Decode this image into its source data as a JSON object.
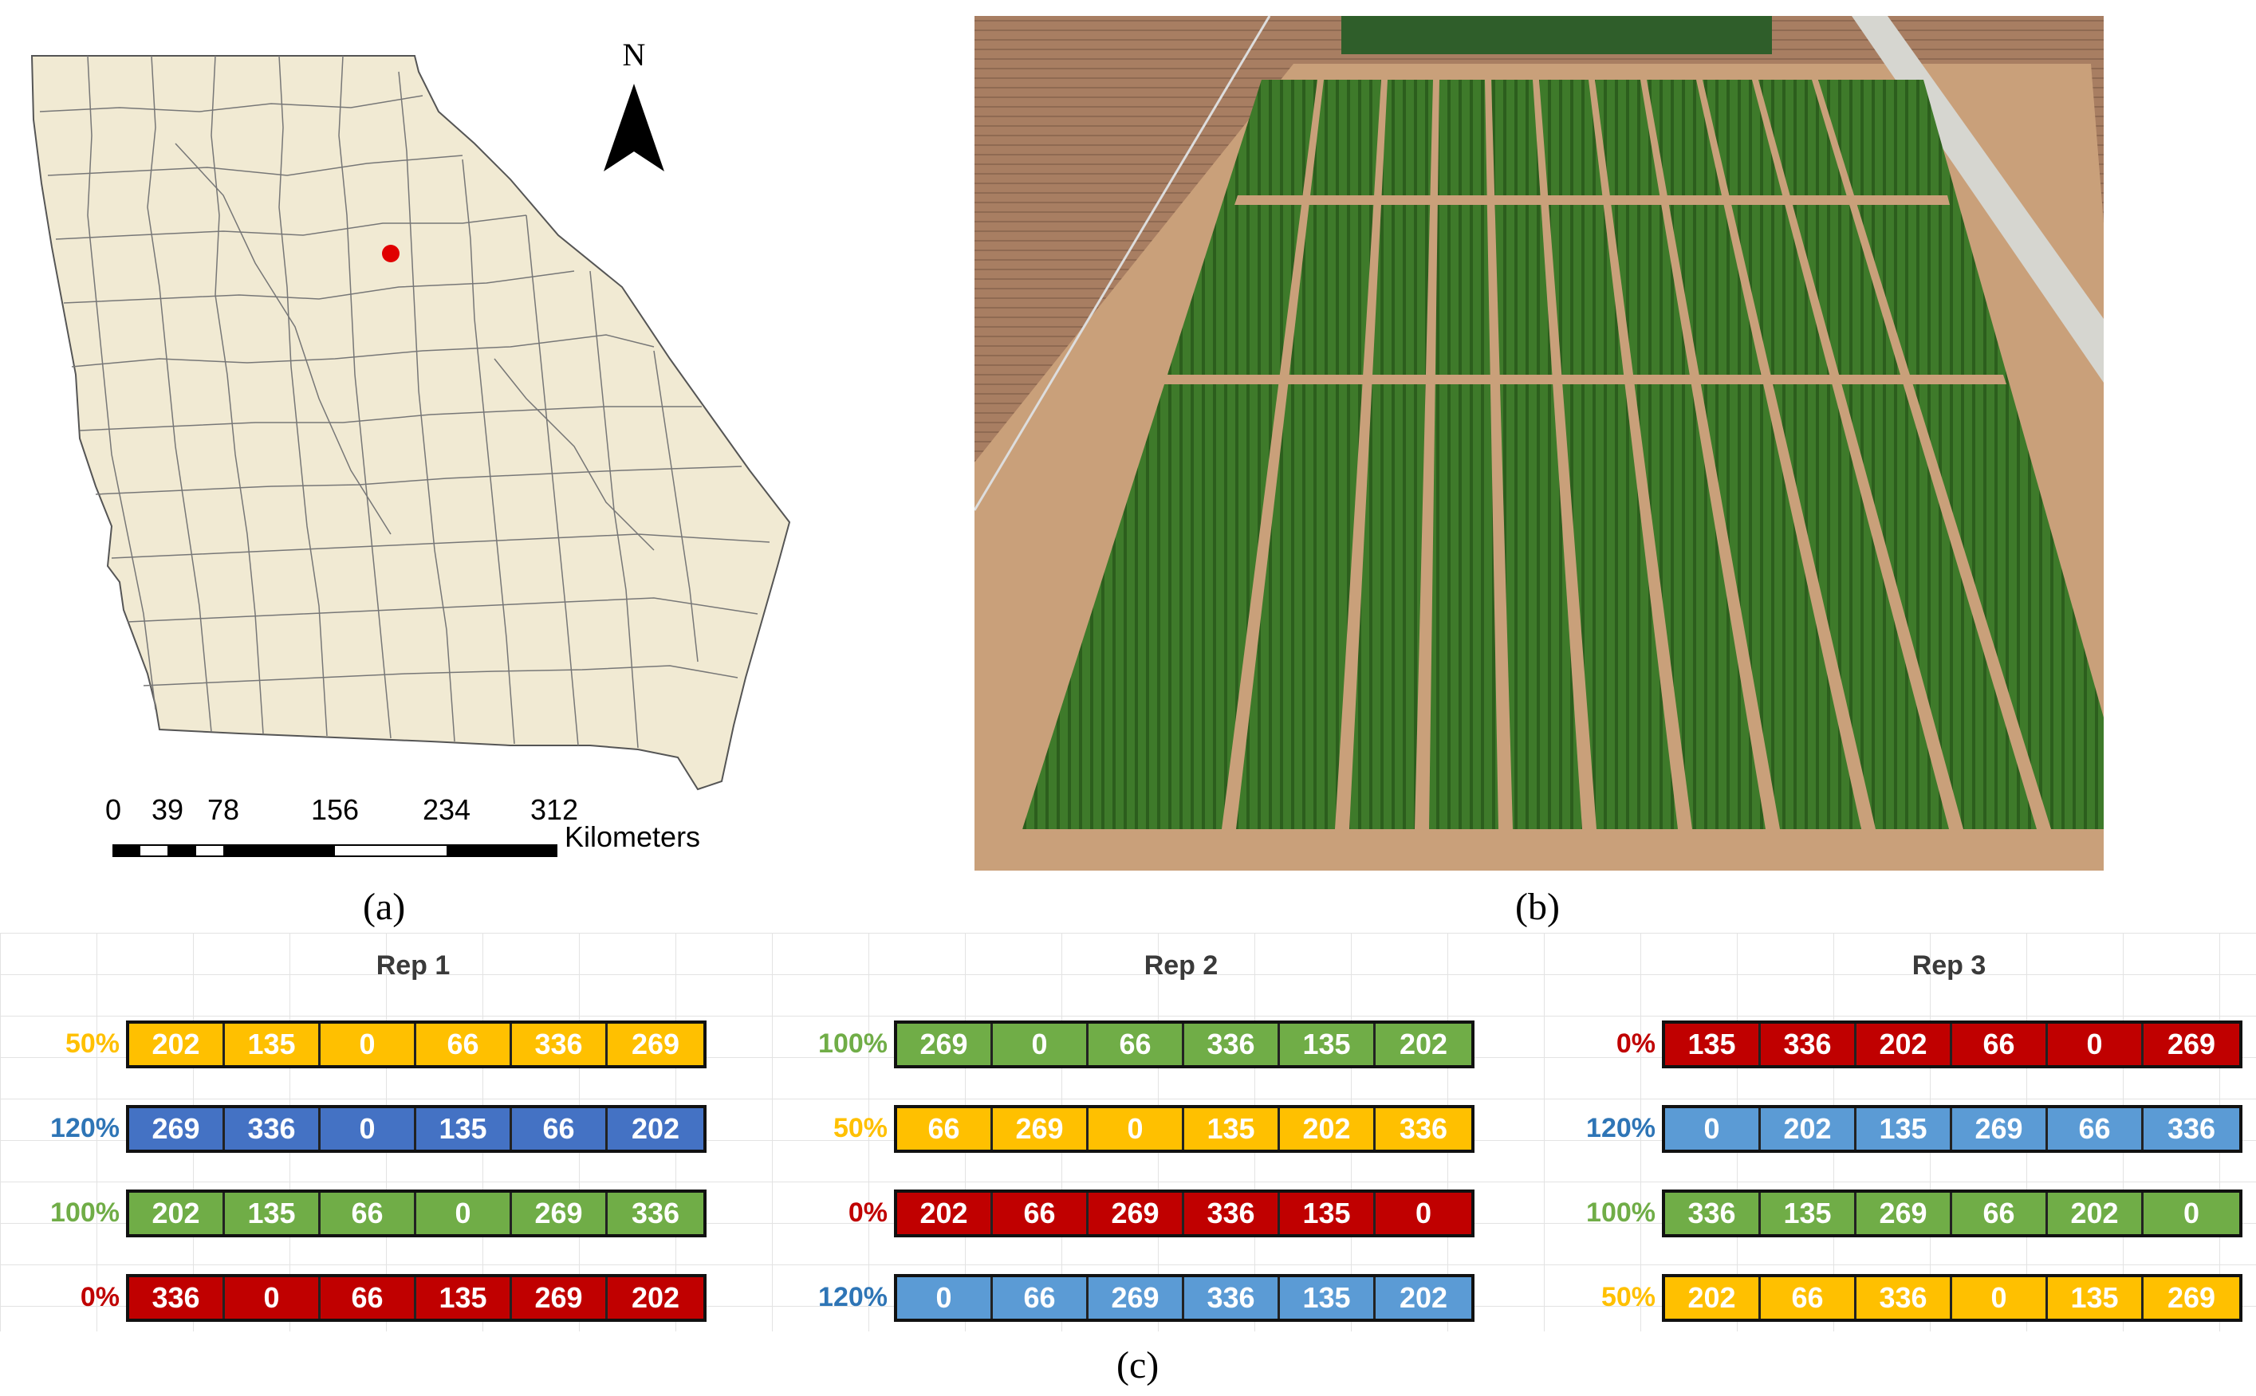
{
  "map": {
    "north_label": "N",
    "scale_ticks": [
      "0",
      "39",
      "78",
      "156",
      "234",
      "312"
    ],
    "scale_unit": "Kilometers"
  },
  "captions": {
    "a": "(a)",
    "b": "(b)",
    "c": "(c)"
  },
  "colors": {
    "p0": "#c00000",
    "p50": "#ffc000",
    "p100": "#70ad47",
    "p120_rep1": "#4472c4",
    "p120": "#5b9bd5",
    "label_red": "#c00000",
    "label_yellow": "#ffc000",
    "label_green": "#70ad47",
    "label_blue": "#2e75b6",
    "site_marker": "#e00000"
  },
  "reps": [
    {
      "title": "Rep 1",
      "rows": [
        {
          "label": "50%",
          "color": "p50",
          "label_color": "label_yellow",
          "values": [
            "202",
            "135",
            "0",
            "66",
            "336",
            "269"
          ]
        },
        {
          "label": "120%",
          "color": "p120_rep1",
          "label_color": "label_blue",
          "values": [
            "269",
            "336",
            "0",
            "135",
            "66",
            "202"
          ]
        },
        {
          "label": "100%",
          "color": "p100",
          "label_color": "label_green",
          "values": [
            "202",
            "135",
            "66",
            "0",
            "269",
            "336"
          ]
        },
        {
          "label": "0%",
          "color": "p0",
          "label_color": "label_red",
          "values": [
            "336",
            "0",
            "66",
            "135",
            "269",
            "202"
          ]
        }
      ]
    },
    {
      "title": "Rep 2",
      "rows": [
        {
          "label": "100%",
          "color": "p100",
          "label_color": "label_green",
          "values": [
            "269",
            "0",
            "66",
            "336",
            "135",
            "202"
          ]
        },
        {
          "label": "50%",
          "color": "p50",
          "label_color": "label_yellow",
          "values": [
            "66",
            "269",
            "0",
            "135",
            "202",
            "336"
          ]
        },
        {
          "label": "0%",
          "color": "p0",
          "label_color": "label_red",
          "values": [
            "202",
            "66",
            "269",
            "336",
            "135",
            "0"
          ]
        },
        {
          "label": "120%",
          "color": "p120",
          "label_color": "label_blue",
          "values": [
            "0",
            "66",
            "269",
            "336",
            "135",
            "202"
          ]
        }
      ]
    },
    {
      "title": "Rep 3",
      "rows": [
        {
          "label": "0%",
          "color": "p0",
          "label_color": "label_red",
          "values": [
            "135",
            "336",
            "202",
            "66",
            "0",
            "269"
          ]
        },
        {
          "label": "120%",
          "color": "p120",
          "label_color": "label_blue",
          "values": [
            "0",
            "202",
            "135",
            "269",
            "66",
            "336"
          ]
        },
        {
          "label": "100%",
          "color": "p100",
          "label_color": "label_green",
          "values": [
            "336",
            "135",
            "269",
            "66",
            "202",
            "0"
          ]
        },
        {
          "label": "50%",
          "color": "p50",
          "label_color": "label_yellow",
          "values": [
            "202",
            "66",
            "336",
            "0",
            "135",
            "269"
          ]
        }
      ]
    }
  ]
}
